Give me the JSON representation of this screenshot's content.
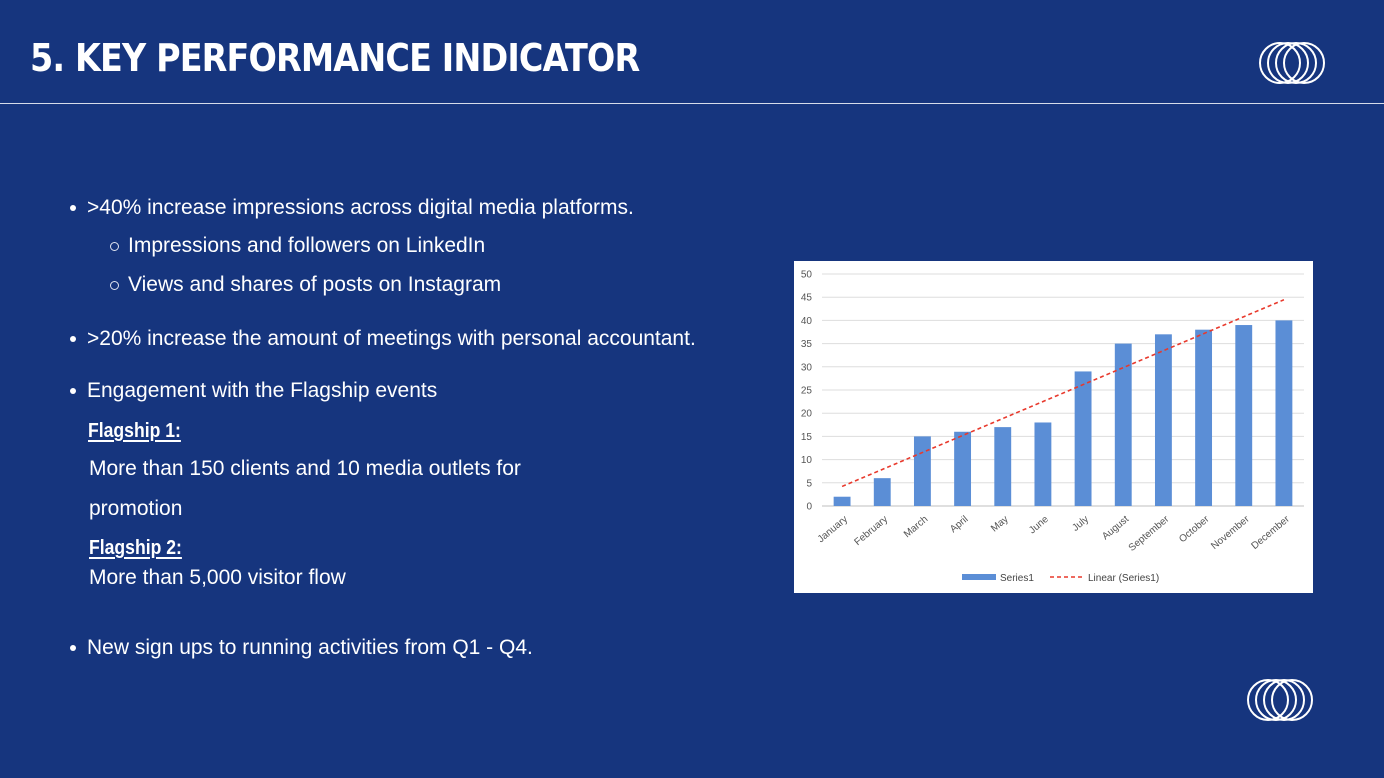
{
  "header": {
    "title": "5. KEY PERFORMANCE INDICATOR"
  },
  "icons": {
    "logo": "interlocking-rings-icon"
  },
  "colors": {
    "background": "#16357e",
    "text": "#ffffff",
    "bar": "#5b8ed6",
    "trendline": "#e8392c"
  },
  "bullets": {
    "b1": ">40% increase impressions across digital media platforms.",
    "b1_sub1": "Impressions and followers on LinkedIn",
    "b1_sub2": "Views and shares of posts on Instagram",
    "b2": ">20% increase the amount of meetings with personal accountant.",
    "b3": "Engagement with the Flagship events",
    "flagship1_heading": "Flagship 1:",
    "flagship1_line1": "More than 150 clients and 10 media outlets for",
    "flagship1_line2": "promotion",
    "flagship2_heading": "Flagship 2:",
    "flagship2_line1": "More than 5,000 visitor flow",
    "b4": "New sign ups to running activities from Q1 - Q4."
  },
  "chart_data": {
    "type": "bar",
    "categories": [
      "January",
      "February",
      "March",
      "April",
      "May",
      "June",
      "July",
      "August",
      "September",
      "October",
      "November",
      "December"
    ],
    "series": [
      {
        "name": "Series1",
        "values": [
          2,
          6,
          15,
          16,
          17,
          18,
          29,
          35,
          37,
          38,
          39,
          40
        ]
      }
    ],
    "trendline": {
      "name": "Linear (Series1)",
      "type": "linear",
      "style": "dashed"
    },
    "ylim": [
      0,
      50
    ],
    "yticks": [
      0,
      5,
      10,
      15,
      20,
      25,
      30,
      35,
      40,
      45,
      50
    ],
    "grid": true,
    "legend_position": "bottom",
    "title": "",
    "xlabel": "",
    "ylabel": ""
  }
}
